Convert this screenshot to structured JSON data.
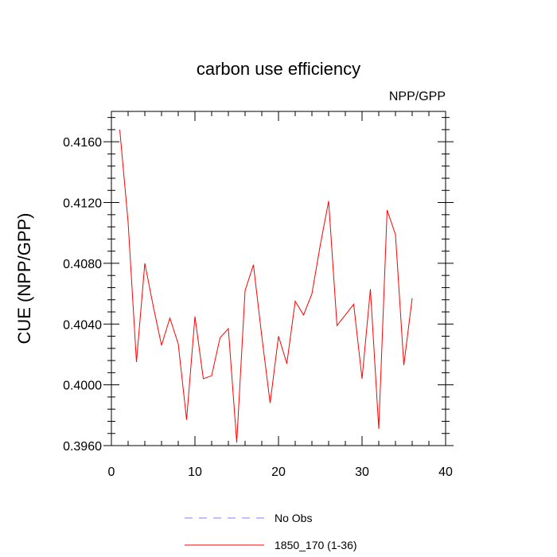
{
  "chart_data": {
    "type": "line",
    "title": "carbon use efficiency",
    "subtitle": "NPP/GPP",
    "xlabel": "",
    "ylabel": "CUE  (NPP/GPP)",
    "xlim": [
      0,
      40
    ],
    "ylim": [
      0.396,
      0.418
    ],
    "x_ticks": [
      0,
      10,
      20,
      30,
      40
    ],
    "x_tick_labels": [
      "0",
      "10",
      "20",
      "30",
      "40"
    ],
    "y_ticks": [
      0.396,
      0.4,
      0.404,
      0.408,
      0.412,
      0.416
    ],
    "y_tick_labels": [
      "0.3960",
      "0.4000",
      "0.4040",
      "0.4080",
      "0.4120",
      "0.4160"
    ],
    "grid": false,
    "legend_position": "bottom",
    "series": [
      {
        "name": "No Obs",
        "color": "#8080ff",
        "dash": true,
        "x": [],
        "values": []
      },
      {
        "name": "1850_170 (1-36)",
        "color": "#ff0000",
        "dash": false,
        "x": [
          1,
          2,
          3,
          4,
          5,
          6,
          7,
          8,
          9,
          10,
          11,
          12,
          13,
          14,
          15,
          16,
          17,
          18,
          19,
          20,
          21,
          22,
          23,
          24,
          25,
          26,
          27,
          28,
          29,
          30,
          31,
          32,
          33,
          34,
          35,
          36
        ],
        "values": [
          0.4168,
          0.4107,
          0.4015,
          0.408,
          0.4052,
          0.4026,
          0.4044,
          0.4027,
          0.3977,
          0.4045,
          0.4004,
          0.4006,
          0.4031,
          0.4037,
          0.3962,
          0.4062,
          0.4079,
          0.4032,
          0.3988,
          0.4032,
          0.4014,
          0.4055,
          0.4046,
          0.406,
          0.4092,
          0.4121,
          0.4039,
          0.4046,
          0.4053,
          0.4004,
          0.4063,
          0.3971,
          0.4115,
          0.4099,
          0.4013,
          0.4057
        ]
      }
    ]
  }
}
